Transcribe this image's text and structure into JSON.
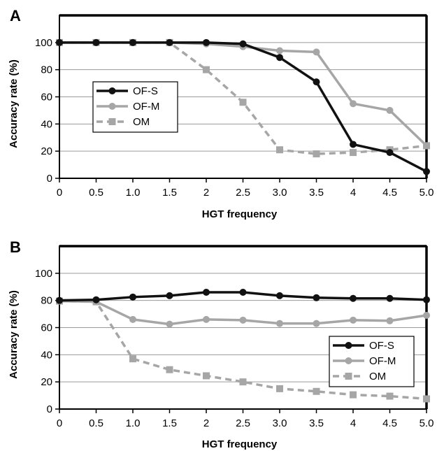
{
  "chart_data": [
    {
      "type": "line",
      "panel_label": "A",
      "xlabel": "HGT frequency",
      "ylabel": "Accuracy rate (%)",
      "categories": [
        "0",
        "0.5",
        "1.0",
        "1.5",
        "2",
        "2.5",
        "3.0",
        "3.5",
        "4",
        "4.5",
        "5.0"
      ],
      "ylim": [
        0,
        120
      ],
      "yticks": [
        "0",
        "20",
        "40",
        "60",
        "80",
        "100"
      ],
      "grid": true,
      "legend_position": "middle-left",
      "series": [
        {
          "name": "OF-S",
          "color": "#111111",
          "style": "solid",
          "marker": "circle",
          "values": [
            100,
            100,
            100,
            100,
            100,
            99,
            89,
            71,
            25,
            19,
            5
          ]
        },
        {
          "name": "OF-M",
          "color": "#a6a6a6",
          "style": "solid",
          "marker": "circle",
          "values": [
            100,
            100,
            100,
            100,
            99,
            97,
            94,
            93,
            55,
            50,
            24
          ]
        },
        {
          "name": "OM",
          "color": "#a6a6a6",
          "style": "dashed",
          "marker": "square",
          "values": [
            100,
            100,
            100,
            100,
            80,
            56,
            21,
            18,
            19,
            21,
            24
          ]
        }
      ]
    },
    {
      "type": "line",
      "panel_label": "B",
      "xlabel": "HGT frequency",
      "ylabel": "Accuracy rate (%)",
      "categories": [
        "0",
        "0.5",
        "1.0",
        "1.5",
        "2",
        "2.5",
        "3.0",
        "3.5",
        "4",
        "4.5",
        "5.0"
      ],
      "ylim": [
        0,
        120
      ],
      "yticks": [
        "0",
        "20",
        "40",
        "60",
        "80",
        "100"
      ],
      "grid": true,
      "legend_position": "bottom-right",
      "series": [
        {
          "name": "OF-S",
          "color": "#111111",
          "style": "solid",
          "marker": "circle",
          "values": [
            80,
            80.5,
            82.5,
            83.5,
            86,
            86,
            83.5,
            82,
            81.5,
            81.5,
            80.5
          ]
        },
        {
          "name": "OF-M",
          "color": "#a6a6a6",
          "style": "solid",
          "marker": "circle",
          "values": [
            79.5,
            79,
            66,
            62.5,
            66,
            65.5,
            63,
            63,
            65.5,
            65,
            69
          ]
        },
        {
          "name": "OM",
          "color": "#a6a6a6",
          "style": "dashed",
          "marker": "square",
          "values": [
            79.5,
            79,
            37,
            29,
            24.5,
            20,
            15,
            13,
            10.5,
            9.5,
            7.5
          ]
        }
      ]
    }
  ]
}
